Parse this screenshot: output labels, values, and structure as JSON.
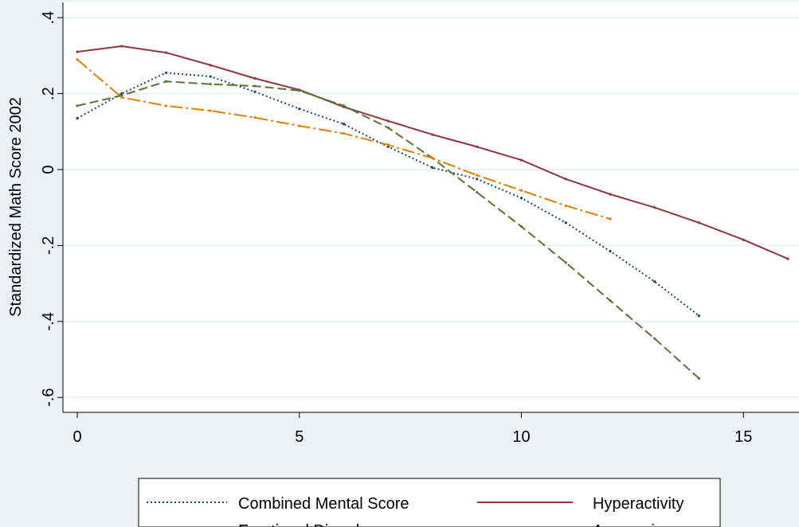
{
  "chart_data": {
    "type": "line",
    "title": "",
    "xlabel": "",
    "ylabel": "Standardized Math Score 2002",
    "xlim": [
      0,
      16.25
    ],
    "ylim": [
      -0.64,
      0.41
    ],
    "x_ticks": [
      0,
      5,
      10,
      15
    ],
    "x_tick_labels": [
      "0",
      "5",
      "10",
      "15"
    ],
    "y_ticks": [
      0.4,
      0.2,
      0,
      -0.2,
      -0.4,
      -0.6
    ],
    "y_tick_labels": [
      ".4",
      ".2",
      "0",
      "-.2",
      "-.4",
      "-.6"
    ],
    "grid": "horizontal",
    "legend_position": "bottom",
    "colors": {
      "background": "#eaf2f3",
      "plot": "#ffffff",
      "grid": "#eaf2f3"
    },
    "series": [
      {
        "name": "Combined Mental Score",
        "color": "#1a476f",
        "dash": "2,3",
        "x": [
          0,
          1,
          2,
          3,
          4,
          5,
          6,
          7,
          8,
          9,
          10,
          11,
          12,
          13,
          14
        ],
        "y": [
          0.135,
          0.2,
          0.255,
          0.245,
          0.205,
          0.16,
          0.12,
          0.06,
          0.005,
          -0.025,
          -0.075,
          -0.14,
          -0.215,
          -0.295,
          -0.385
        ]
      },
      {
        "name": "Hyperactivity",
        "color": "#90353b",
        "dash": "",
        "x": [
          0,
          1,
          2,
          3,
          4,
          5,
          6,
          7,
          8,
          9,
          10,
          11,
          12,
          13,
          14,
          15,
          16
        ],
        "y": [
          0.31,
          0.325,
          0.308,
          0.275,
          0.24,
          0.21,
          0.165,
          0.128,
          0.092,
          0.06,
          0.025,
          -0.025,
          -0.065,
          -0.1,
          -0.14,
          -0.185,
          -0.235
        ]
      },
      {
        "name": "Emotional Disorder",
        "color": "#55752f",
        "dash": "11,5",
        "x": [
          0,
          1,
          2,
          3,
          4,
          5,
          6,
          7,
          8,
          9,
          10,
          11,
          12,
          13,
          14
        ],
        "y": [
          0.168,
          0.195,
          0.232,
          0.225,
          0.22,
          0.208,
          0.168,
          0.11,
          0.03,
          -0.06,
          -0.15,
          -0.245,
          -0.345,
          -0.445,
          -0.55
        ]
      },
      {
        "name": "Aggression",
        "color": "#e37e00",
        "dash": "16,4,3,4",
        "x": [
          0,
          1,
          2,
          3,
          4,
          5,
          6,
          7,
          8,
          9,
          10,
          11,
          12
        ],
        "y": [
          0.29,
          0.19,
          0.168,
          0.155,
          0.137,
          0.115,
          0.095,
          0.065,
          0.03,
          -0.015,
          -0.055,
          -0.095,
          -0.13
        ]
      }
    ],
    "legend_order": [
      "Combined Mental Score",
      "Hyperactivity",
      "Emotional Disorder",
      "Aggression"
    ]
  }
}
